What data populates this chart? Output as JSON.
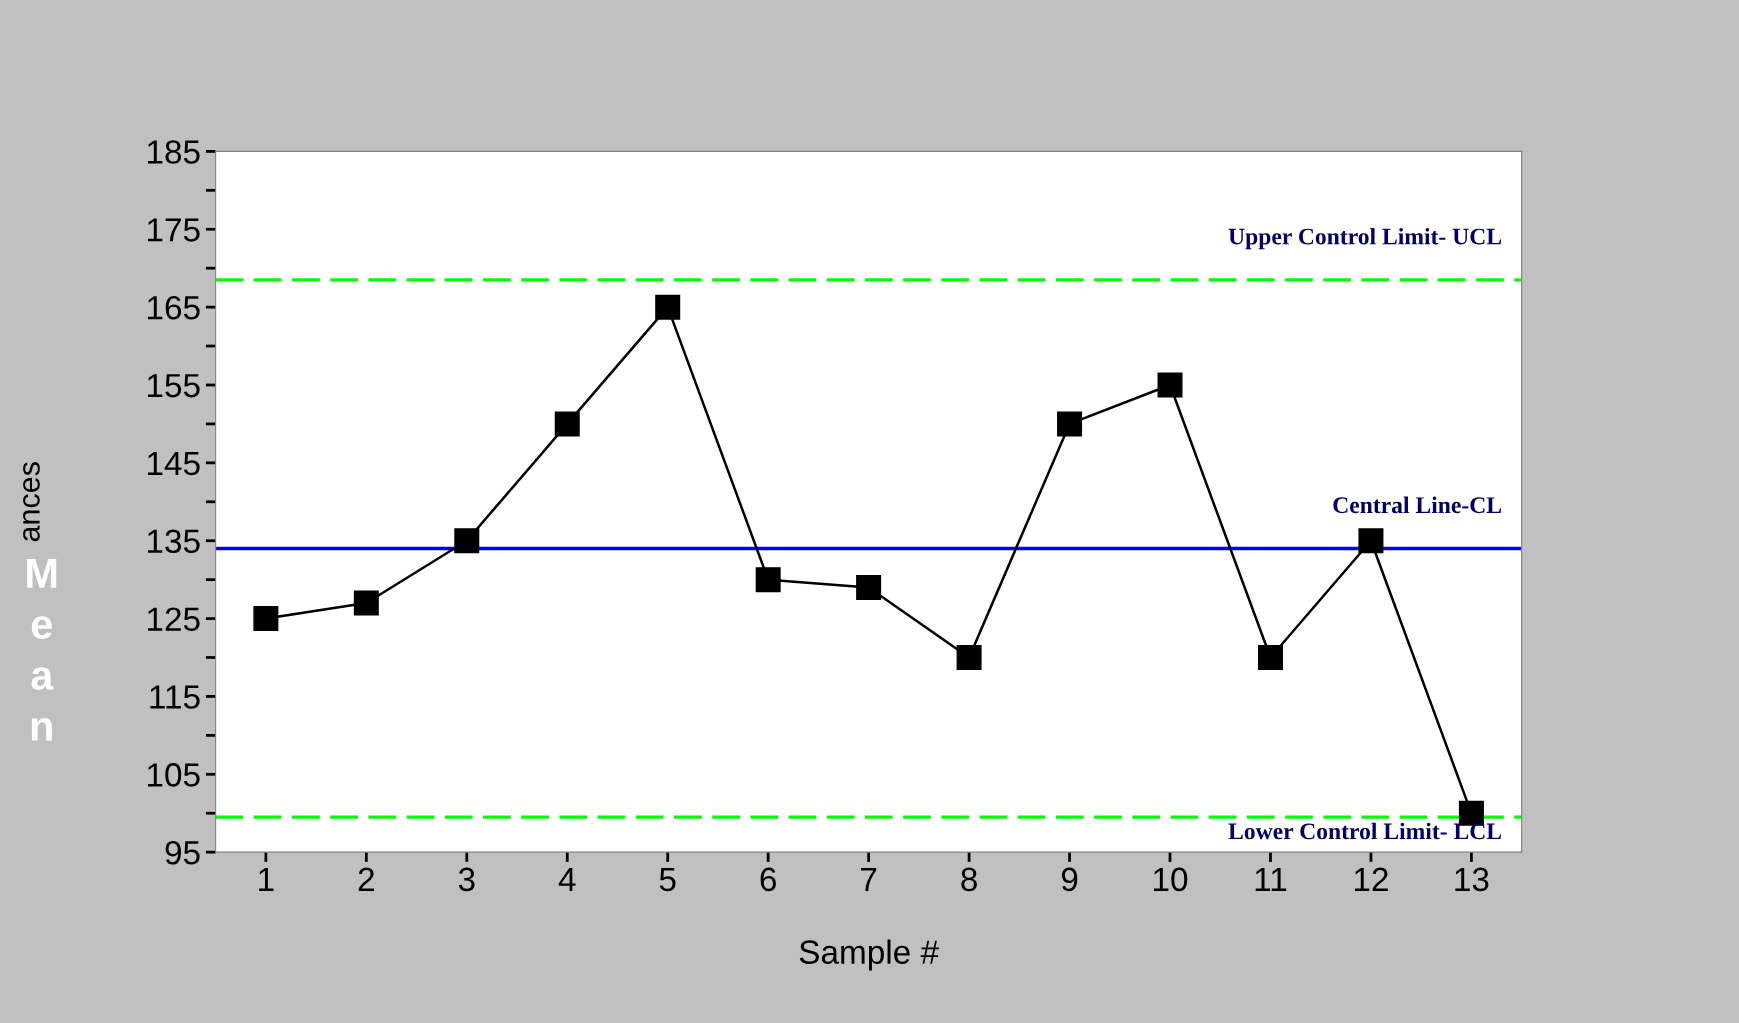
{
  "chart_data": {
    "type": "line",
    "xlabel": "Sample #",
    "ylabel": "ances",
    "annotations": [
      "Mean"
    ],
    "x": [
      1,
      2,
      3,
      4,
      5,
      6,
      7,
      8,
      9,
      10,
      11,
      12,
      13
    ],
    "series": [
      {
        "color": "#000000",
        "values": [
          125,
          127,
          135,
          150,
          165,
          130,
          129,
          120,
          150,
          155,
          120,
          135,
          100
        ]
      }
    ],
    "marker": "square",
    "line_style": "solid",
    "xlim": [
      0.5,
      13.5
    ],
    "xticks": [
      1,
      2,
      3,
      4,
      5,
      6,
      7,
      8,
      9,
      10,
      11,
      12,
      13
    ],
    "ylim": [
      95,
      185
    ],
    "yticks": [
      95,
      105,
      115,
      125,
      135,
      145,
      155,
      165,
      175,
      185
    ],
    "ref_lines": [
      {
        "axis": "y",
        "value": 168.5,
        "label": "Upper Control Limit- UCL",
        "color": "#00ff00",
        "line_style": "dashed"
      },
      {
        "axis": "y",
        "value": 134,
        "label": "Central Line-CL",
        "color": "#0000ff",
        "line_style": "solid"
      },
      {
        "axis": "y",
        "value": 99.5,
        "label": "Lower Control Limit- LCL",
        "color": "#00ff00",
        "line_style": "dashed"
      }
    ],
    "grid": false,
    "legend": false
  }
}
